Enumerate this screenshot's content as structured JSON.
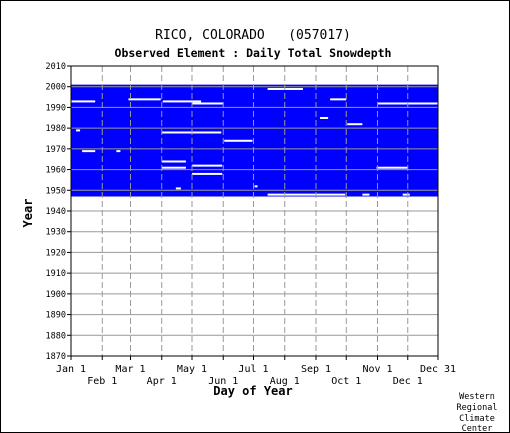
{
  "chart_data": {
    "type": "heatmap",
    "title": "RICO, COLORADO   (057017)",
    "subtitle": "Observed Element : Daily Total Snowdepth",
    "xlabel": "Day of Year",
    "ylabel": "Year",
    "x_ticks_upper": [
      "Jan 1",
      "Mar 1",
      "May 1",
      "Jul 1",
      "Sep 1",
      "Nov 1",
      "Dec 31"
    ],
    "x_ticks_lower": [
      "Feb 1",
      "Apr 1",
      "Jun 1",
      "Aug 1",
      "Oct 1",
      "Dec 1"
    ],
    "y_ticks": [
      "1870",
      "1880",
      "1890",
      "1900",
      "1910",
      "1920",
      "1930",
      "1940",
      "1950",
      "1960",
      "1970",
      "1980",
      "1990",
      "2000",
      "2010"
    ],
    "ylim": [
      1870,
      2010
    ],
    "xlim_day": [
      1,
      365
    ],
    "observed_block": {
      "year_start": 1948,
      "year_end": 2001,
      "day_start": 1,
      "day_end": 365,
      "color": "#0000FF"
    },
    "missing_segments": [
      {
        "year": 1993,
        "day_start": 1,
        "day_end": 25
      },
      {
        "year": 1994,
        "day_start": 58,
        "day_end": 90
      },
      {
        "year": 1993,
        "day_start": 92,
        "day_end": 130
      },
      {
        "year": 1992,
        "day_start": 121,
        "day_end": 152
      },
      {
        "year": 1999,
        "day_start": 196,
        "day_end": 231
      },
      {
        "year": 1994,
        "day_start": 258,
        "day_end": 274
      },
      {
        "year": 1992,
        "day_start": 305,
        "day_end": 365
      },
      {
        "year": 1985,
        "day_start": 248,
        "day_end": 256
      },
      {
        "year": 1982,
        "day_start": 275,
        "day_end": 290
      },
      {
        "year": 1978,
        "day_start": 91,
        "day_end": 150
      },
      {
        "year": 1974,
        "day_start": 153,
        "day_end": 181
      },
      {
        "year": 1969,
        "day_start": 12,
        "day_end": 25
      },
      {
        "year": 1964,
        "day_start": 91,
        "day_end": 115
      },
      {
        "year": 1961,
        "day_start": 91,
        "day_end": 115
      },
      {
        "year": 1962,
        "day_start": 121,
        "day_end": 151
      },
      {
        "year": 1958,
        "day_start": 121,
        "day_end": 151
      },
      {
        "year": 1961,
        "day_start": 304,
        "day_end": 335
      },
      {
        "year": 1951,
        "day_start": 105,
        "day_end": 110
      },
      {
        "year": 1952,
        "day_start": 183,
        "day_end": 186
      },
      {
        "year": 1948,
        "day_start": 196,
        "day_end": 273
      },
      {
        "year": 1948,
        "day_start": 290,
        "day_end": 297
      },
      {
        "year": 1948,
        "day_start": 330,
        "day_end": 337
      },
      {
        "year": 1979,
        "day_start": 6,
        "day_end": 10
      },
      {
        "year": 1969,
        "day_start": 46,
        "day_end": 50
      }
    ],
    "missing_gaps_late": [
      {
        "day_start": 0,
        "day_end": 3,
        "y_start": 1948,
        "y_end": 2001
      },
      {
        "day_start": 42,
        "day_end": 44,
        "y_start": 1948,
        "y_end": 2001
      }
    ],
    "grid": true,
    "colors": {
      "observed": "#0000FF",
      "missing": "#FFFFFF",
      "grid": "#999999",
      "box": "#000000"
    }
  },
  "credit": [
    "Western",
    "Regional",
    "Climate",
    "Center"
  ]
}
